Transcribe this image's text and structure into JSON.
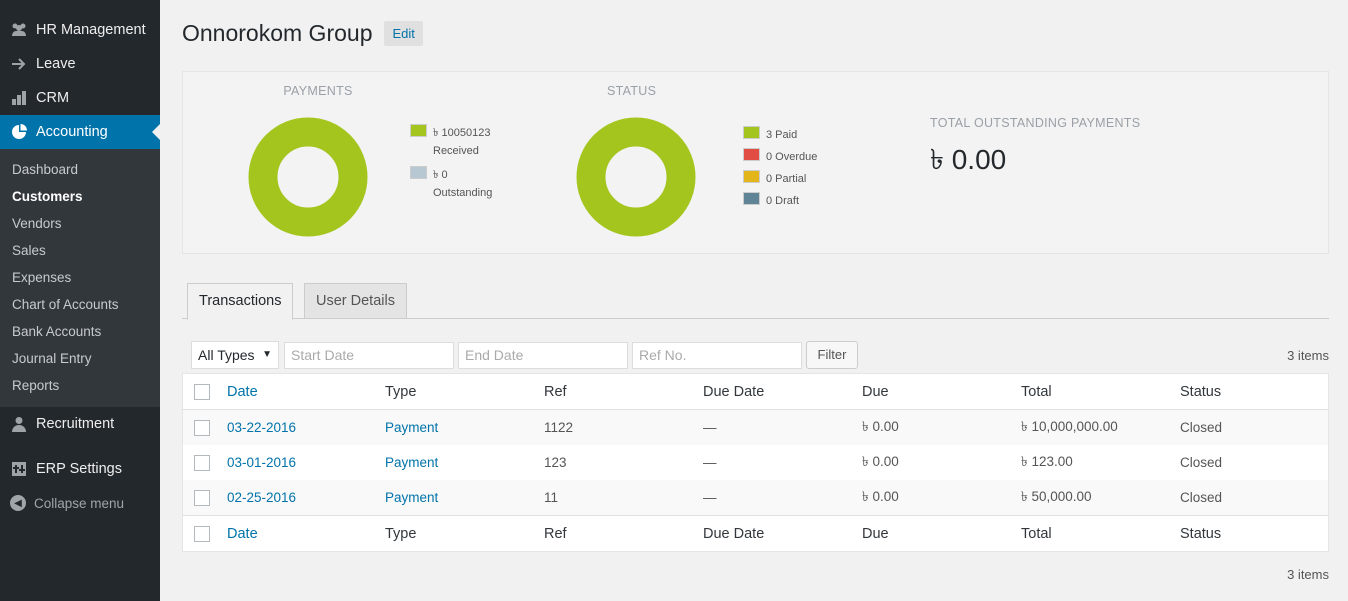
{
  "sidebar": {
    "menu": [
      {
        "label": "HR Management",
        "icon": "groups-icon"
      },
      {
        "label": "Leave",
        "icon": "arrow-right-icon"
      },
      {
        "label": "CRM",
        "icon": "chart-bar-icon"
      },
      {
        "label": "Accounting",
        "icon": "pie-chart-icon"
      }
    ],
    "submenu": [
      "Dashboard",
      "Customers",
      "Vendors",
      "Sales",
      "Expenses",
      "Chart of Accounts",
      "Bank Accounts",
      "Journal Entry",
      "Reports"
    ],
    "bottom": [
      {
        "label": "Recruitment",
        "icon": "person-icon"
      },
      {
        "label": "ERP Settings",
        "icon": "settings-grid-icon"
      }
    ],
    "collapse_label": "Collapse menu"
  },
  "header": {
    "title": "Onnorokom Group",
    "edit_label": "Edit"
  },
  "summary": {
    "payments_title": "PAYMENTS",
    "payments_legend": [
      {
        "line1": "৳ 10050123",
        "line2": "Received",
        "color": "#a4c51d"
      },
      {
        "line1": "৳ 0",
        "line2": "Outstanding",
        "color": "#b8c8d2"
      }
    ],
    "status_title": "STATUS",
    "status_legend": [
      {
        "label": "3 Paid",
        "color": "#a4c51d"
      },
      {
        "label": "0 Overdue",
        "color": "#e14d43"
      },
      {
        "label": "0 Partial",
        "color": "#e2b51b"
      },
      {
        "label": "0 Draft",
        "color": "#5f8496"
      }
    ],
    "total_label": "TOTAL OUTSTANDING PAYMENTS",
    "total_value": "৳ 0.00",
    "donut_color": "#a4c51d"
  },
  "tabs": [
    "Transactions",
    "User Details"
  ],
  "filters": {
    "type_value": "All Types",
    "start_placeholder": "Start Date",
    "end_placeholder": "End Date",
    "ref_placeholder": "Ref No.",
    "filter_label": "Filter",
    "items_count": "3 items"
  },
  "table": {
    "columns": [
      "Date",
      "Type",
      "Ref",
      "Due Date",
      "Due",
      "Total",
      "Status"
    ],
    "rows": [
      {
        "date": "03-22-2016",
        "type": "Payment",
        "ref": "1122",
        "due_date": "—",
        "due": "৳ 0.00",
        "total": "৳ 10,000,000.00",
        "status": "Closed"
      },
      {
        "date": "03-01-2016",
        "type": "Payment",
        "ref": "123",
        "due_date": "—",
        "due": "৳ 0.00",
        "total": "৳ 123.00",
        "status": "Closed"
      },
      {
        "date": "02-25-2016",
        "type": "Payment",
        "ref": "11",
        "due_date": "—",
        "due": "৳ 0.00",
        "total": "৳ 50,000.00",
        "status": "Closed"
      }
    ]
  },
  "footer_count": "3 items"
}
